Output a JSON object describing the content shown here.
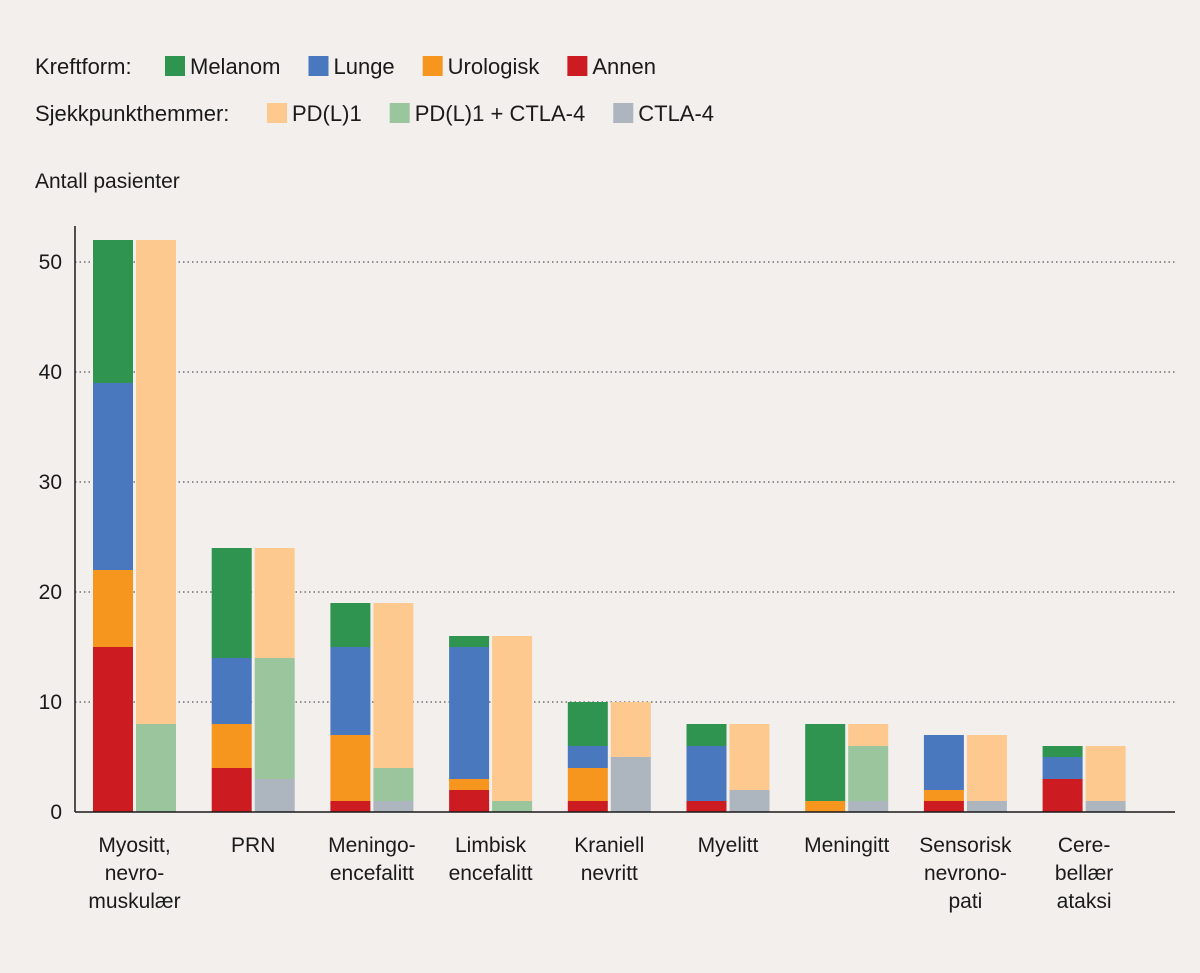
{
  "chart_data": {
    "type": "bar",
    "stacked": true,
    "grouped": true,
    "ylabel": "Antall pasienter",
    "ylim": [
      0,
      52
    ],
    "yticks": [
      0,
      10,
      20,
      30,
      40,
      50
    ],
    "grid": "horizontal dotted",
    "legend_placement": "top-left",
    "legends": [
      {
        "title": "Kreftform:",
        "items": [
          {
            "name": "Melanom",
            "color": "#2e9450"
          },
          {
            "name": "Lunge",
            "color": "#4a78be"
          },
          {
            "name": "Urologisk",
            "color": "#f7961f"
          },
          {
            "name": "Annen",
            "color": "#cc1c22"
          }
        ]
      },
      {
        "title": "Sjekkpunkthemmer:",
        "items": [
          {
            "name": "PD(L)1",
            "color": "#fdc98e"
          },
          {
            "name": "PD(L)1 + CTLA-4",
            "color": "#9ac59d"
          },
          {
            "name": "CTLA-4",
            "color": "#adb5be"
          }
        ]
      }
    ],
    "categories": [
      [
        "Myositt,",
        "nevro-",
        "muskulær"
      ],
      [
        "PRN"
      ],
      [
        "Meningo-",
        "encefalitt"
      ],
      [
        "Limbisk",
        "encefalitt"
      ],
      [
        "Kraniell",
        "nevritt"
      ],
      [
        "Myelitt"
      ],
      [
        "Meningitt"
      ],
      [
        "Sensorisk",
        "nevrono-",
        "pati"
      ],
      [
        "Cere-",
        "bellær",
        "ataksi"
      ]
    ],
    "cancer_series": [
      {
        "name": "Annen",
        "color": "#cc1c22",
        "values": [
          15,
          4,
          1,
          2,
          1,
          1,
          0,
          1,
          3
        ]
      },
      {
        "name": "Urologisk",
        "color": "#f7961f",
        "values": [
          7,
          4,
          6,
          1,
          3,
          0,
          1,
          1,
          0
        ]
      },
      {
        "name": "Lunge",
        "color": "#4a78be",
        "values": [
          17,
          6,
          8,
          12,
          2,
          5,
          0,
          5,
          2
        ]
      },
      {
        "name": "Melanom",
        "color": "#2e9450",
        "values": [
          13,
          10,
          4,
          1,
          4,
          2,
          7,
          0,
          1
        ]
      }
    ],
    "checkpoint_series": [
      {
        "name": "CTLA-4",
        "color": "#adb5be",
        "values": [
          0,
          3,
          1,
          0,
          5,
          2,
          1,
          1,
          1
        ]
      },
      {
        "name": "PD(L)1 + CTLA-4",
        "color": "#9ac59d",
        "values": [
          8,
          11,
          3,
          1,
          0,
          0,
          5,
          0,
          0
        ]
      },
      {
        "name": "PD(L)1",
        "color": "#fdc98e",
        "values": [
          44,
          10,
          15,
          15,
          5,
          6,
          2,
          6,
          5
        ]
      }
    ]
  }
}
